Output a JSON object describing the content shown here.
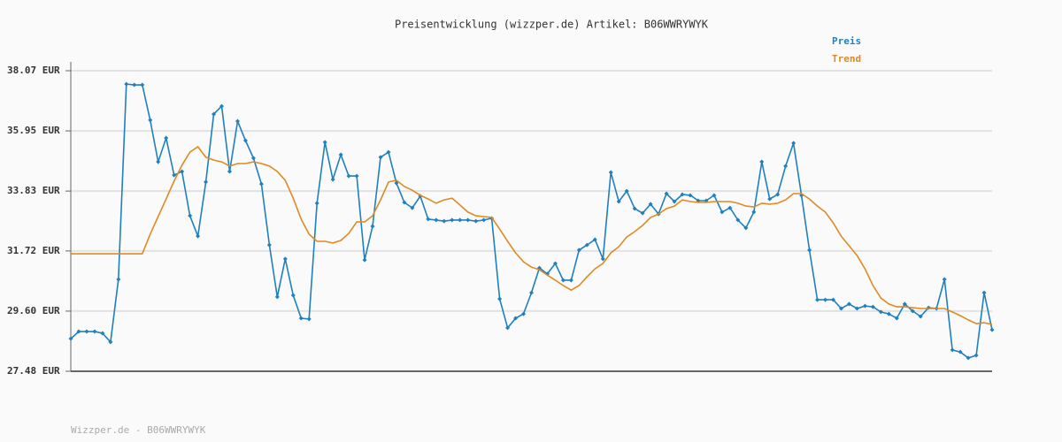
{
  "chart_data": {
    "type": "line",
    "title": "Preisentwicklung (wizzper.de) Artikel: B06WWRYWYK",
    "footer": "Wizzper.de - B06WWRYWYK",
    "legend": "top-right",
    "grid": true,
    "ylim": [
      27.48,
      38.07
    ],
    "yticks": [
      {
        "value": 27.48,
        "label": "27.48 EUR"
      },
      {
        "value": 29.6,
        "label": "29.60 EUR"
      },
      {
        "value": 31.72,
        "label": "31.72 EUR"
      },
      {
        "value": 33.83,
        "label": "33.83 EUR"
      },
      {
        "value": 35.95,
        "label": "35.95 EUR"
      },
      {
        "value": 38.07,
        "label": "38.07 EUR"
      }
    ],
    "series": [
      {
        "name": "Preis",
        "color": "#1f80c0",
        "markers": true,
        "values": [
          28.63,
          28.88,
          28.88,
          28.88,
          28.82,
          28.51,
          30.72,
          37.6,
          37.57,
          37.57,
          36.33,
          34.86,
          35.7,
          34.39,
          34.52,
          32.96,
          32.24,
          34.15,
          36.54,
          36.82,
          34.52,
          36.29,
          35.61,
          34.99,
          34.08,
          31.93,
          30.1,
          31.44,
          30.16,
          29.35,
          29.32,
          33.4,
          35.55,
          34.24,
          35.11,
          34.36,
          34.36,
          31.4,
          32.59,
          35.02,
          35.2,
          34.11,
          33.43,
          33.24,
          33.65,
          32.84,
          32.81,
          32.77,
          32.81,
          32.81,
          32.81,
          32.77,
          32.81,
          32.87,
          30.03,
          29.01,
          29.35,
          29.5,
          30.25,
          31.12,
          30.91,
          31.28,
          30.69,
          30.69,
          31.75,
          31.93,
          32.12,
          31.44,
          34.49,
          33.46,
          33.83,
          33.21,
          33.05,
          33.37,
          33.02,
          33.74,
          33.46,
          33.71,
          33.68,
          33.49,
          33.49,
          33.68,
          33.09,
          33.24,
          32.81,
          32.53,
          33.09,
          34.86,
          33.55,
          33.71,
          34.71,
          35.52,
          33.68,
          31.75,
          30.0,
          30.0,
          30.0,
          29.69,
          29.85,
          29.69,
          29.78,
          29.75,
          29.57,
          29.5,
          29.35,
          29.85,
          29.6,
          29.41,
          29.72,
          29.69,
          30.72,
          28.23,
          28.16,
          27.95,
          28.04,
          30.25,
          28.94
        ]
      },
      {
        "name": "Trend",
        "color": "#e08a22",
        "markers": false,
        "values": [
          31.62,
          31.62,
          31.62,
          31.62,
          31.62,
          31.62,
          31.62,
          31.62,
          31.62,
          31.62,
          32.31,
          32.93,
          33.55,
          34.18,
          34.74,
          35.2,
          35.39,
          35.02,
          34.92,
          34.86,
          34.71,
          34.8,
          34.8,
          34.86,
          34.8,
          34.71,
          34.52,
          34.21,
          33.58,
          32.84,
          32.31,
          32.06,
          32.06,
          32.0,
          32.09,
          32.34,
          32.74,
          32.74,
          32.96,
          33.52,
          34.15,
          34.21,
          33.99,
          33.86,
          33.68,
          33.55,
          33.4,
          33.52,
          33.58,
          33.34,
          33.09,
          32.96,
          32.93,
          32.9,
          32.49,
          32.06,
          31.65,
          31.34,
          31.15,
          31.06,
          30.87,
          30.69,
          30.5,
          30.34,
          30.5,
          30.81,
          31.09,
          31.28,
          31.65,
          31.87,
          32.21,
          32.4,
          32.62,
          32.9,
          33.02,
          33.21,
          33.3,
          33.52,
          33.46,
          33.43,
          33.43,
          33.46,
          33.46,
          33.46,
          33.4,
          33.3,
          33.27,
          33.4,
          33.37,
          33.4,
          33.52,
          33.74,
          33.74,
          33.55,
          33.3,
          33.09,
          32.71,
          32.24,
          31.9,
          31.56,
          31.09,
          30.5,
          30.06,
          29.85,
          29.75,
          29.75,
          29.72,
          29.69,
          29.69,
          29.69,
          29.69,
          29.57,
          29.44,
          29.29,
          29.16,
          29.19,
          29.13
        ]
      }
    ]
  }
}
